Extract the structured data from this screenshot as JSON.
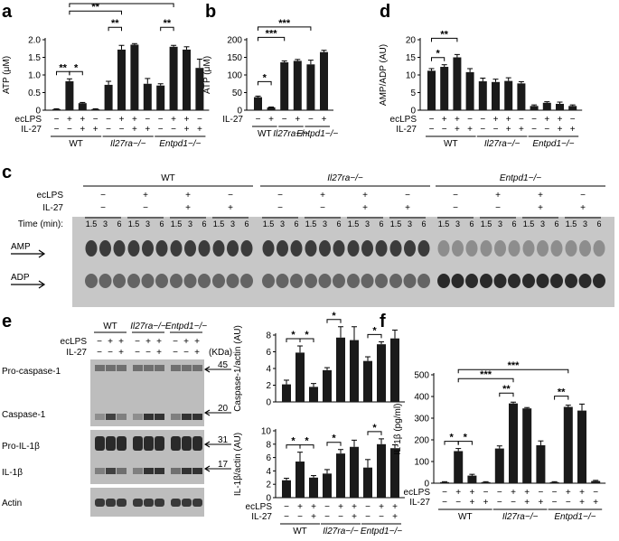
{
  "panels": {
    "a": "a",
    "b": "b",
    "c": "c",
    "d": "d",
    "e": "e",
    "f": "f"
  },
  "chart_data": [
    {
      "id": "a",
      "type": "bar",
      "ylabel": "ATP (μM)",
      "ylim": [
        0,
        2
      ],
      "yticks": [
        "0",
        "0.5",
        "1.0",
        "1.5",
        "2.0"
      ],
      "values": [
        0.03,
        0.82,
        0.2,
        0.03,
        0.72,
        1.72,
        1.86,
        0.75,
        0.7,
        1.8,
        1.72,
        1.2
      ],
      "errors": [
        0.01,
        0.07,
        0.02,
        0.01,
        0.1,
        0.12,
        0.03,
        0.15,
        0.05,
        0.04,
        0.08,
        0.25
      ],
      "ecLPS": [
        "−",
        "+",
        "+",
        "−",
        "−",
        "+",
        "+",
        "−",
        "−",
        "+",
        "+",
        "−"
      ],
      "IL27": [
        "−",
        "−",
        "+",
        "+",
        "−",
        "−",
        "+",
        "+",
        "−",
        "−",
        "+",
        "+"
      ],
      "groups": [
        "WT",
        "Il27ra−/−",
        "Entpd1−/−"
      ],
      "significance": [
        "**",
        "*",
        "**",
        "**",
        "**",
        "**"
      ]
    },
    {
      "id": "b",
      "type": "bar",
      "ylabel": "ATP (μM)",
      "ylim": [
        0,
        200
      ],
      "yticks": [
        "0",
        "50",
        "100",
        "150",
        "200"
      ],
      "values": [
        37,
        8,
        136,
        140,
        130,
        165
      ],
      "errors": [
        3,
        1,
        4,
        4,
        12,
        5
      ],
      "IL27": [
        "−",
        "+",
        "−",
        "+",
        "−",
        "+"
      ],
      "groups": [
        "WT",
        "Il27ra−/−",
        "Entpd1−/−"
      ],
      "significance": [
        "*",
        "***",
        "***"
      ]
    },
    {
      "id": "d",
      "type": "bar",
      "ylabel": "AMP/ADP (AU)",
      "ylim": [
        0,
        20
      ],
      "yticks": [
        "0",
        "5",
        "10",
        "15",
        "20"
      ],
      "values": [
        11.2,
        12.3,
        15.0,
        10.8,
        8.2,
        8.0,
        8.3,
        7.6,
        1.2,
        2.1,
        1.8,
        1.2
      ],
      "errors": [
        0.6,
        0.6,
        0.8,
        1.0,
        0.9,
        0.8,
        0.9,
        0.5,
        0.3,
        0.3,
        0.5,
        0.3
      ],
      "ecLPS": [
        "−",
        "+",
        "+",
        "−",
        "−",
        "+",
        "+",
        "−",
        "−",
        "+",
        "+",
        "−"
      ],
      "IL27": [
        "−",
        "−",
        "+",
        "+",
        "−",
        "−",
        "+",
        "+",
        "−",
        "−",
        "+",
        "+"
      ],
      "groups": [
        "WT",
        "Il27ra−/−",
        "Entpd1−/−"
      ],
      "significance": [
        "*",
        "**"
      ]
    },
    {
      "id": "e-top",
      "type": "bar",
      "ylabel": "Caspase-1/actin (AU)",
      "ylim": [
        0,
        8
      ],
      "yticks": [
        "0",
        "2",
        "4",
        "6",
        "8"
      ],
      "values": [
        2.1,
        5.9,
        1.8,
        3.8,
        7.7,
        7.4,
        4.9,
        6.9,
        7.6
      ],
      "errors": [
        0.5,
        0.8,
        0.4,
        0.3,
        1.3,
        1.6,
        0.5,
        0.3,
        1.0
      ],
      "significance": [
        "*",
        "*",
        "*",
        "*"
      ]
    },
    {
      "id": "e-bottom",
      "type": "bar",
      "ylabel": "IL-1β/actin (AU)",
      "ylim": [
        0,
        10
      ],
      "yticks": [
        "0",
        "2",
        "4",
        "6",
        "8",
        "10"
      ],
      "values": [
        2.6,
        5.4,
        3.0,
        3.6,
        6.6,
        7.6,
        4.5,
        8.0,
        7.4
      ],
      "errors": [
        0.3,
        1.4,
        0.3,
        0.6,
        0.6,
        1.0,
        1.2,
        0.8,
        0.5
      ],
      "ecLPS": [
        "−",
        "+",
        "+",
        "−",
        "+",
        "+",
        "−",
        "+",
        "+"
      ],
      "IL27": [
        "−",
        "−",
        "+",
        "−",
        "−",
        "+",
        "−",
        "−",
        "+"
      ],
      "groups": [
        "WT",
        "Il27ra−/−",
        "Entpd1−/−"
      ],
      "significance": [
        "*",
        "*",
        "*",
        "*"
      ]
    },
    {
      "id": "f",
      "type": "bar",
      "ylabel": "IL-1β (pg/ml)",
      "ylim": [
        0,
        500
      ],
      "yticks": [
        "0",
        "100",
        "200",
        "300",
        "400",
        "500"
      ],
      "values": [
        5,
        148,
        35,
        5,
        160,
        368,
        345,
        175,
        5,
        352,
        335,
        10
      ],
      "errors": [
        2,
        12,
        6,
        2,
        12,
        6,
        4,
        20,
        2,
        8,
        30,
        3
      ],
      "ecLPS": [
        "−",
        "+",
        "+",
        "−",
        "−",
        "+",
        "+",
        "−",
        "−",
        "+",
        "+",
        "−"
      ],
      "IL27": [
        "−",
        "−",
        "+",
        "+",
        "−",
        "−",
        "+",
        "+",
        "−",
        "−",
        "+",
        "+"
      ],
      "groups": [
        "WT",
        "Il27ra−/−",
        "Entpd1−/−"
      ],
      "significance": [
        "*",
        "*",
        "***",
        "***",
        "**",
        "**"
      ]
    }
  ],
  "panel_c": {
    "groups": [
      "WT",
      "Il27ra−/−",
      "Entpd1−/−"
    ],
    "ecLPS_label": "ecLPS",
    "IL27_label": "IL-27",
    "time_label": "Time (min):",
    "ecLPS": [
      "−",
      "+",
      "+",
      "−"
    ],
    "IL27": [
      "−",
      "−",
      "+",
      "+"
    ],
    "times": [
      "1.5",
      "3",
      "6"
    ],
    "amp_label": "AMP",
    "adp_label": "ADP"
  },
  "panel_e_blot": {
    "groups": [
      "WT",
      "Il27ra−/−",
      "Entpd1−/−"
    ],
    "ecLPS_label": "ecLPS",
    "IL27_label": "IL-27",
    "ecLPS": [
      "−",
      "+",
      "+"
    ],
    "IL27": [
      "−",
      "−",
      "+"
    ],
    "kda_label": "(KDa)",
    "rows": [
      "Pro-caspase-1",
      "Caspase-1",
      "Pro-IL-1β",
      "IL-1β",
      "Actin"
    ],
    "markers": [
      "45",
      "20",
      "31",
      "17"
    ]
  },
  "labels": {
    "ecLPS": "ecLPS",
    "IL27": "IL-27"
  },
  "colors": {
    "bar": "#1a1a1a",
    "blot_bg": "#bdbdbd",
    "band": "#222222"
  }
}
